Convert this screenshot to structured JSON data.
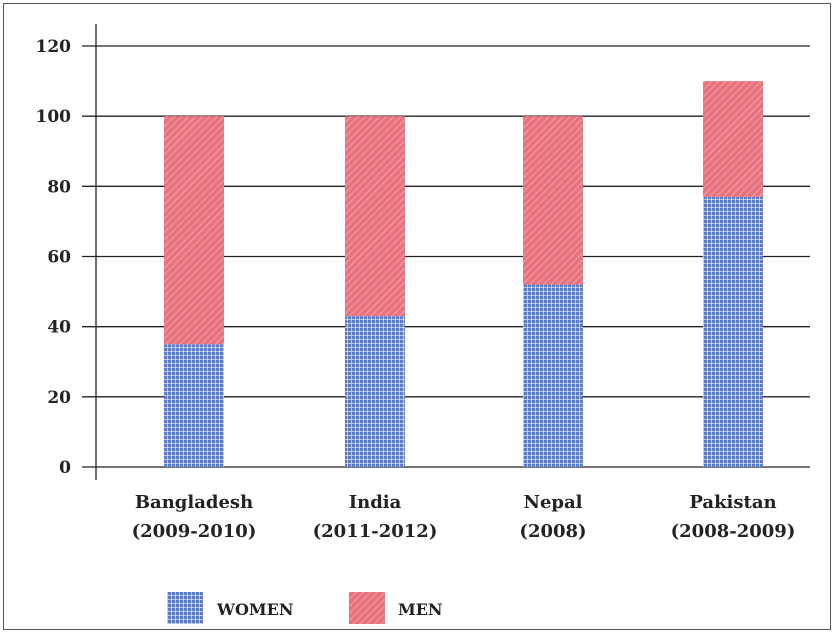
{
  "colors": {
    "women": "#5b7cc8",
    "women_grid": "#ffffff",
    "men": "#e8737f",
    "men_hatch": "#f2aab1",
    "gridline": "#222222"
  },
  "chart_data": {
    "type": "bar",
    "stacked": true,
    "categories": [
      [
        "Bangladesh",
        "(2009-2010)"
      ],
      [
        "India",
        "(2011-2012)"
      ],
      [
        "Nepal",
        "(2008)"
      ],
      [
        "Pakistan",
        "(2008-2009)"
      ]
    ],
    "series": [
      {
        "name": "WOMEN",
        "values": [
          35,
          43,
          52,
          77
        ]
      },
      {
        "name": "MEN",
        "values": [
          65,
          57,
          48,
          33
        ]
      }
    ],
    "ylim": [
      0,
      120
    ],
    "yticks": [
      0,
      20,
      40,
      60,
      80,
      100,
      120
    ],
    "grid": true,
    "legend_position": "bottom-left"
  }
}
